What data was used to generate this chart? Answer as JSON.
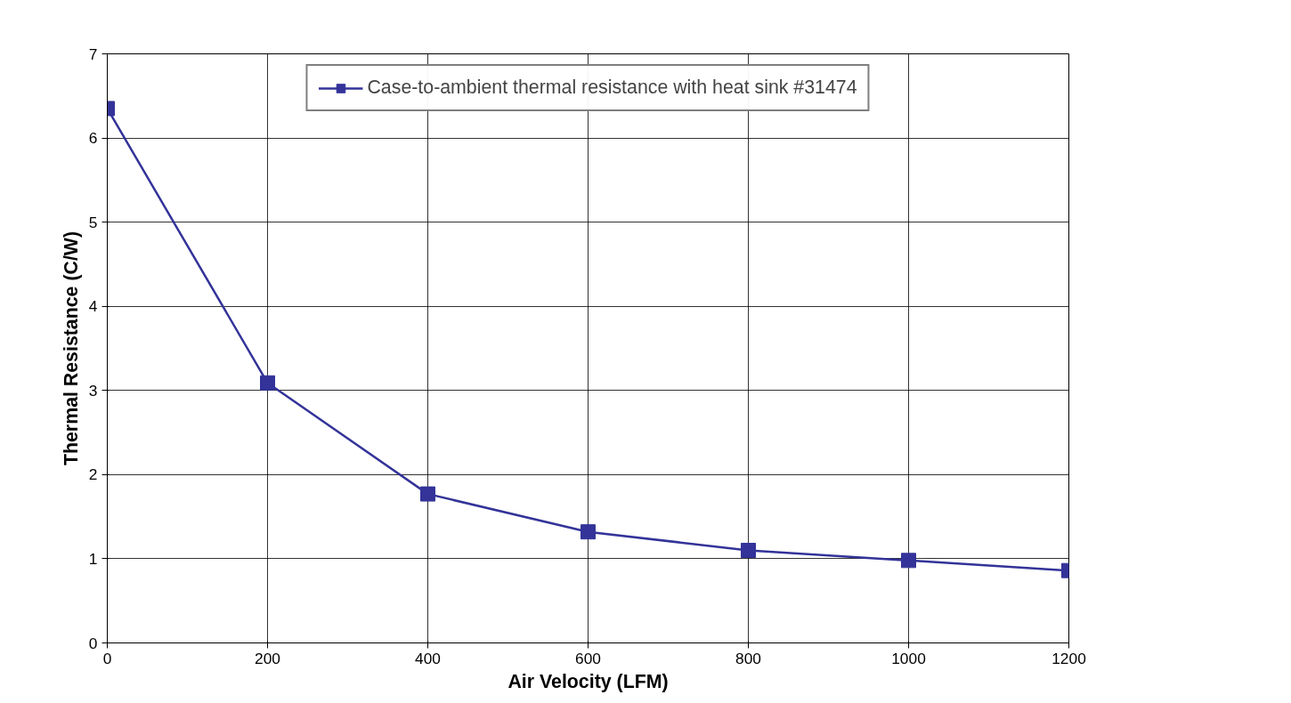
{
  "chart_data": {
    "type": "line",
    "xlabel": "Air Velocity (LFM)",
    "ylabel": "Thermal Resistance (C/W)",
    "x": [
      0,
      200,
      400,
      600,
      800,
      1000,
      1200
    ],
    "series": [
      {
        "name": "Case-to-ambient thermal resistance with heat sink #31474",
        "color": "#333399",
        "values": [
          6.35,
          3.09,
          1.77,
          1.32,
          1.1,
          0.98,
          0.86
        ]
      }
    ],
    "xlim": [
      0,
      1200
    ],
    "xticks": [
      0,
      200,
      400,
      600,
      800,
      1000,
      1200
    ],
    "ylim": [
      0,
      7
    ],
    "yticks": [
      0,
      1,
      2,
      3,
      4,
      5,
      6,
      7
    ],
    "grid": true,
    "legend": "top",
    "marker": "square",
    "line_style": "solid"
  }
}
